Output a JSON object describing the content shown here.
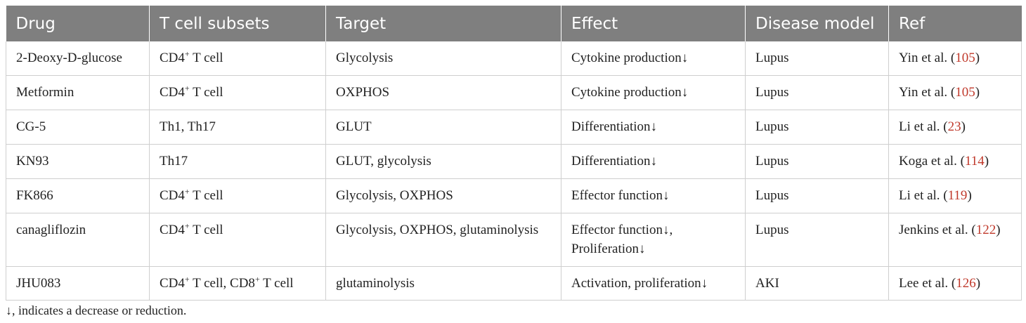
{
  "headers": [
    "Drug",
    "T cell subsets",
    "Target",
    "Effect",
    "Disease model",
    "Ref"
  ],
  "rows": [
    {
      "drug": "2-Deoxy-D-glucose",
      "subsets": [
        {
          "base": "CD4",
          "sup": "+",
          "rest": " T cell"
        }
      ],
      "target": "Glycolysis",
      "effect": [
        "Cytokine production↓"
      ],
      "disease": "Lupus",
      "ref_author": "Yin et al. (",
      "ref_num": "105",
      "ref_close": ")"
    },
    {
      "drug": "Metformin",
      "subsets": [
        {
          "base": "CD4",
          "sup": "+",
          "rest": " T cell"
        }
      ],
      "target": "OXPHOS",
      "effect": [
        "Cytokine production↓"
      ],
      "disease": "Lupus",
      "ref_author": "Yin et al. (",
      "ref_num": "105",
      "ref_close": ")"
    },
    {
      "drug": "CG-5",
      "subsets": [
        {
          "base": "Th1, Th17",
          "sup": "",
          "rest": ""
        }
      ],
      "target": "GLUT",
      "effect": [
        "Differentiation↓"
      ],
      "disease": "Lupus",
      "ref_author": "Li et al. (",
      "ref_num": "23",
      "ref_close": ")"
    },
    {
      "drug": "KN93",
      "subsets": [
        {
          "base": "Th17",
          "sup": "",
          "rest": ""
        }
      ],
      "target": "GLUT, glycolysis",
      "effect": [
        "Differentiation↓"
      ],
      "disease": "Lupus",
      "ref_author": "Koga et al. (",
      "ref_num": "114",
      "ref_close": ")"
    },
    {
      "drug": "FK866",
      "subsets": [
        {
          "base": "CD4",
          "sup": "+",
          "rest": " T cell"
        }
      ],
      "target": "Glycolysis, OXPHOS",
      "effect": [
        "Effector function↓"
      ],
      "disease": "Lupus",
      "ref_author": "Li et al. (",
      "ref_num": "119",
      "ref_close": ")"
    },
    {
      "drug": "canagliflozin",
      "subsets": [
        {
          "base": "CD4",
          "sup": "+",
          "rest": " T cell"
        }
      ],
      "target": "Glycolysis, OXPHOS, glutaminolysis",
      "effect": [
        "Effector function↓,",
        "Proliferation↓"
      ],
      "disease": "Lupus",
      "ref_author": "Jenkins et al. (",
      "ref_num": "122",
      "ref_close": ")"
    },
    {
      "drug": "JHU083",
      "subsets": [
        {
          "base": "CD4",
          "sup": "+",
          "rest": " T cell, "
        },
        {
          "base": "CD8",
          "sup": "+",
          "rest": " T cell"
        }
      ],
      "target": "glutaminolysis",
      "effect": [
        "Activation, proliferation↓"
      ],
      "disease": "AKI",
      "ref_author": "Lee et al. (",
      "ref_num": "126",
      "ref_close": ")"
    }
  ],
  "footnote": "↓, indicates a decrease or reduction.",
  "colors": {
    "header_bg": "#7f7f7f",
    "header_text": "#ffffff",
    "ref_link": "#c0392b",
    "grid": "#cfcfcf"
  }
}
